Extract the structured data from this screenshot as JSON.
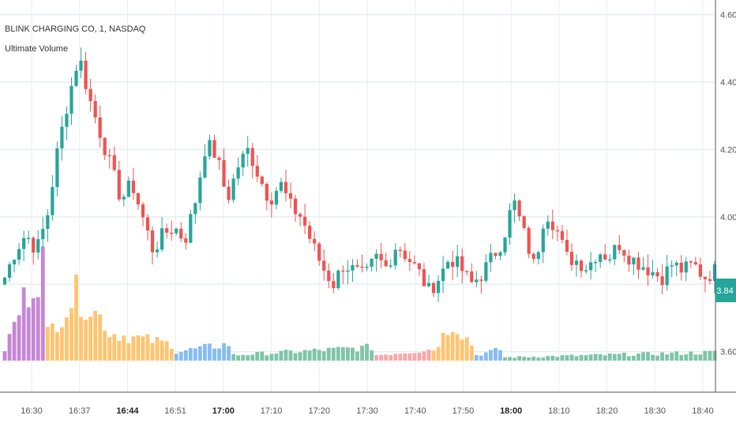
{
  "chart_data": {
    "type": "candlestick",
    "title": "BLINK CHARGING CO, 1, NASDAQ",
    "indicator": "Ultimate Volume",
    "ylim": [
      3.55,
      4.62
    ],
    "y_ticks": [
      "4.60",
      "4.40",
      "4.20",
      "4.00",
      "3.80",
      "3.60"
    ],
    "last_price": "3.84",
    "x_ticks": [
      {
        "label": "16:30",
        "bold": false
      },
      {
        "label": "16:37",
        "bold": false
      },
      {
        "label": "16:44",
        "bold": true
      },
      {
        "label": "16:51",
        "bold": false
      },
      {
        "label": "17:00",
        "bold": true
      },
      {
        "label": "17:10",
        "bold": false
      },
      {
        "label": "17:20",
        "bold": false
      },
      {
        "label": "17:30",
        "bold": false
      },
      {
        "label": "17:40",
        "bold": false
      },
      {
        "label": "17:50",
        "bold": false
      },
      {
        "label": "18:00",
        "bold": true
      },
      {
        "label": "18:10",
        "bold": false
      },
      {
        "label": "18:20",
        "bold": false
      },
      {
        "label": "18:30",
        "bold": false
      },
      {
        "label": "18:40",
        "bold": false
      }
    ],
    "colors": {
      "up": "#26a69a",
      "down": "#ef5350",
      "vol_purple": "#c586d6",
      "vol_orange": "#ffc470",
      "vol_blue": "#86bdf2",
      "vol_green": "#7fc4a8",
      "vol_pink": "#f8a8aa",
      "grid": "#e6eef2",
      "axis": "#555555"
    },
    "close_path": [
      3.82,
      3.9,
      3.95,
      3.9,
      4.0,
      4.2,
      4.35,
      4.48,
      4.35,
      4.25,
      4.15,
      4.05,
      4.1,
      4.0,
      3.9,
      3.95,
      3.97,
      3.93,
      4.05,
      4.22,
      4.18,
      4.05,
      4.15,
      4.2,
      4.12,
      4.05,
      4.1,
      4.03,
      4.0,
      3.92,
      3.85,
      3.8,
      3.86,
      3.84,
      3.82,
      3.88,
      3.85,
      3.92,
      3.88,
      3.84,
      3.78,
      3.82,
      3.88,
      3.85,
      3.8,
      3.83,
      3.88,
      3.93,
      4.05,
      3.95,
      3.85,
      4.02,
      3.97,
      3.88,
      3.87,
      3.85,
      3.9,
      3.88,
      3.92,
      3.88,
      3.86,
      3.84,
      3.82,
      3.86,
      3.84,
      3.86,
      3.82,
      3.84
    ],
    "volume_buckets": [
      {
        "count": 9,
        "color": "vol_purple",
        "levels": [
          0.1,
          0.55,
          0.9
        ]
      },
      {
        "count": 13,
        "color": "vol_orange",
        "levels": [
          0.25,
          0.6,
          0.35
        ]
      },
      {
        "count": 14,
        "color": "vol_orange",
        "levels": [
          0.25,
          0.15
        ]
      },
      {
        "count": 12,
        "color": "vol_blue",
        "levels": [
          0.08,
          0.15
        ]
      },
      {
        "count": 30,
        "color": "vol_green",
        "levels": [
          0.05,
          0.12
        ]
      },
      {
        "count": 12,
        "color": "vol_pink",
        "levels": [
          0.05,
          0.1
        ]
      },
      {
        "count": 9,
        "color": "vol_orange",
        "levels": [
          0.1,
          0.35,
          0.15
        ]
      },
      {
        "count": 6,
        "color": "vol_blue",
        "levels": [
          0.05,
          0.1
        ]
      },
      {
        "count": 50,
        "color": "vol_green",
        "levels": [
          0.03,
          0.08
        ]
      },
      {
        "count": 20,
        "color": "vol_pink",
        "levels": [
          0.03,
          0.08
        ]
      }
    ]
  }
}
